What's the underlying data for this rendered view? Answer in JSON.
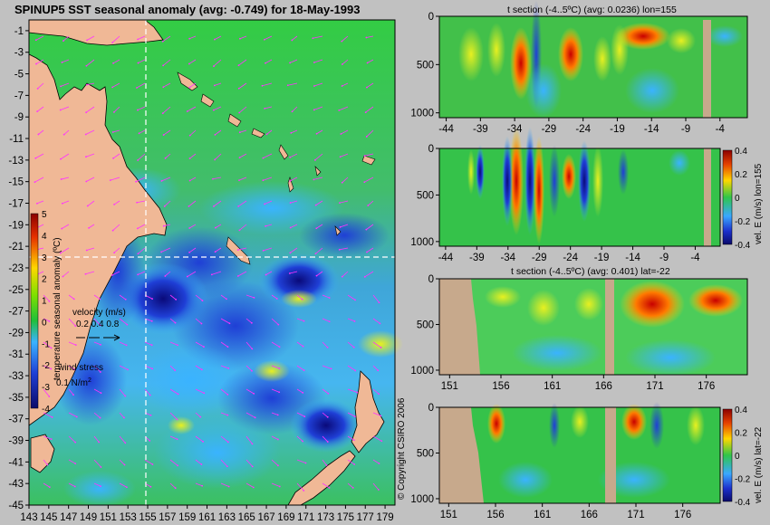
{
  "chart_data": [
    {
      "type": "heatmap",
      "title": "SPINUP5 SST seasonal anomaly (avg: -0.749) for 18-May-1993",
      "x_ticks": [
        "143",
        "145",
        "147",
        "149",
        "151",
        "153",
        "155",
        "157",
        "159",
        "161",
        "163",
        "165",
        "167",
        "169",
        "171",
        "173",
        "175",
        "177",
        "179"
      ],
      "y_ticks": [
        "-1",
        "-3",
        "-5",
        "-7",
        "-9",
        "-11",
        "-13",
        "-15",
        "-17",
        "-19",
        "-21",
        "-23",
        "-25",
        "-27",
        "-29",
        "-31",
        "-33",
        "-35",
        "-37",
        "-39",
        "-41",
        "-43",
        "-45"
      ],
      "xlim": [
        143,
        180
      ],
      "ylim": [
        -45,
        0
      ],
      "colorbar": {
        "label": "temperature seasonal anomaly (ºC)",
        "ticks": [
          "5",
          "4",
          "3",
          "2",
          "1",
          "0",
          "-1",
          "-2",
          "-3",
          "-4"
        ],
        "range": [
          -4,
          5
        ]
      },
      "velocity_legend": {
        "label": "velocity (m/s)",
        "ticks": "0.2 0.4 0.8"
      },
      "wind_legend": {
        "label": "wind stress",
        "value": "0.1 N/m",
        "exponent": "2"
      },
      "crosshair": {
        "lon": 155,
        "lat": -22
      }
    },
    {
      "type": "heatmap",
      "title": "t section (-4..5ºC) (avg: 0.0236) lon=155",
      "x_ticks": [
        "-44",
        "-39",
        "-34",
        "-29",
        "-24",
        "-19",
        "-14",
        "-9",
        "-4"
      ],
      "y_ticks": [
        "0",
        "500",
        "1000"
      ],
      "xlim": [
        -45,
        0
      ],
      "ylim": [
        1050,
        0
      ]
    },
    {
      "type": "heatmap",
      "title": "",
      "x_ticks": [
        "-44",
        "-39",
        "-34",
        "-29",
        "-24",
        "-19",
        "-14",
        "-9",
        "-4"
      ],
      "y_ticks": [
        "0",
        "500",
        "1000"
      ],
      "xlim": [
        -45,
        0
      ],
      "ylim": [
        1050,
        0
      ],
      "colorbar": {
        "label": "vel. E (m/s) lon=155",
        "ticks": [
          "0.4",
          "0.2",
          "0",
          "-0.2",
          "-0.4"
        ],
        "range": [
          -0.4,
          0.4
        ]
      }
    },
    {
      "type": "heatmap",
      "title": "t section (-4..5ºC) (avg: 0.401) lat=-22",
      "x_ticks": [
        "151",
        "156",
        "161",
        "166",
        "171",
        "176"
      ],
      "y_ticks": [
        "0",
        "500",
        "1000"
      ],
      "xlim": [
        150,
        180
      ],
      "ylim": [
        1050,
        0
      ]
    },
    {
      "type": "heatmap",
      "title": "",
      "x_ticks": [
        "151",
        "156",
        "161",
        "166",
        "171",
        "176"
      ],
      "y_ticks": [
        "0",
        "500",
        "1000"
      ],
      "xlim": [
        150,
        180
      ],
      "ylim": [
        1050,
        0
      ],
      "colorbar": {
        "label": "vel. E (m/s) lat=-22",
        "ticks": [
          "0.4",
          "0.2",
          "0",
          "-0.2",
          "-0.4"
        ],
        "range": [
          -0.4,
          0.4
        ]
      }
    }
  ],
  "copyright": "© Copyright CSIRO 2006",
  "colors": {
    "background": "#c1c1c1",
    "land": "#f0b896",
    "topo": "#c7a98c",
    "ocean_mid": "#35c24a",
    "crosshair": "#ffffff",
    "arrows": "#ff33ff"
  }
}
